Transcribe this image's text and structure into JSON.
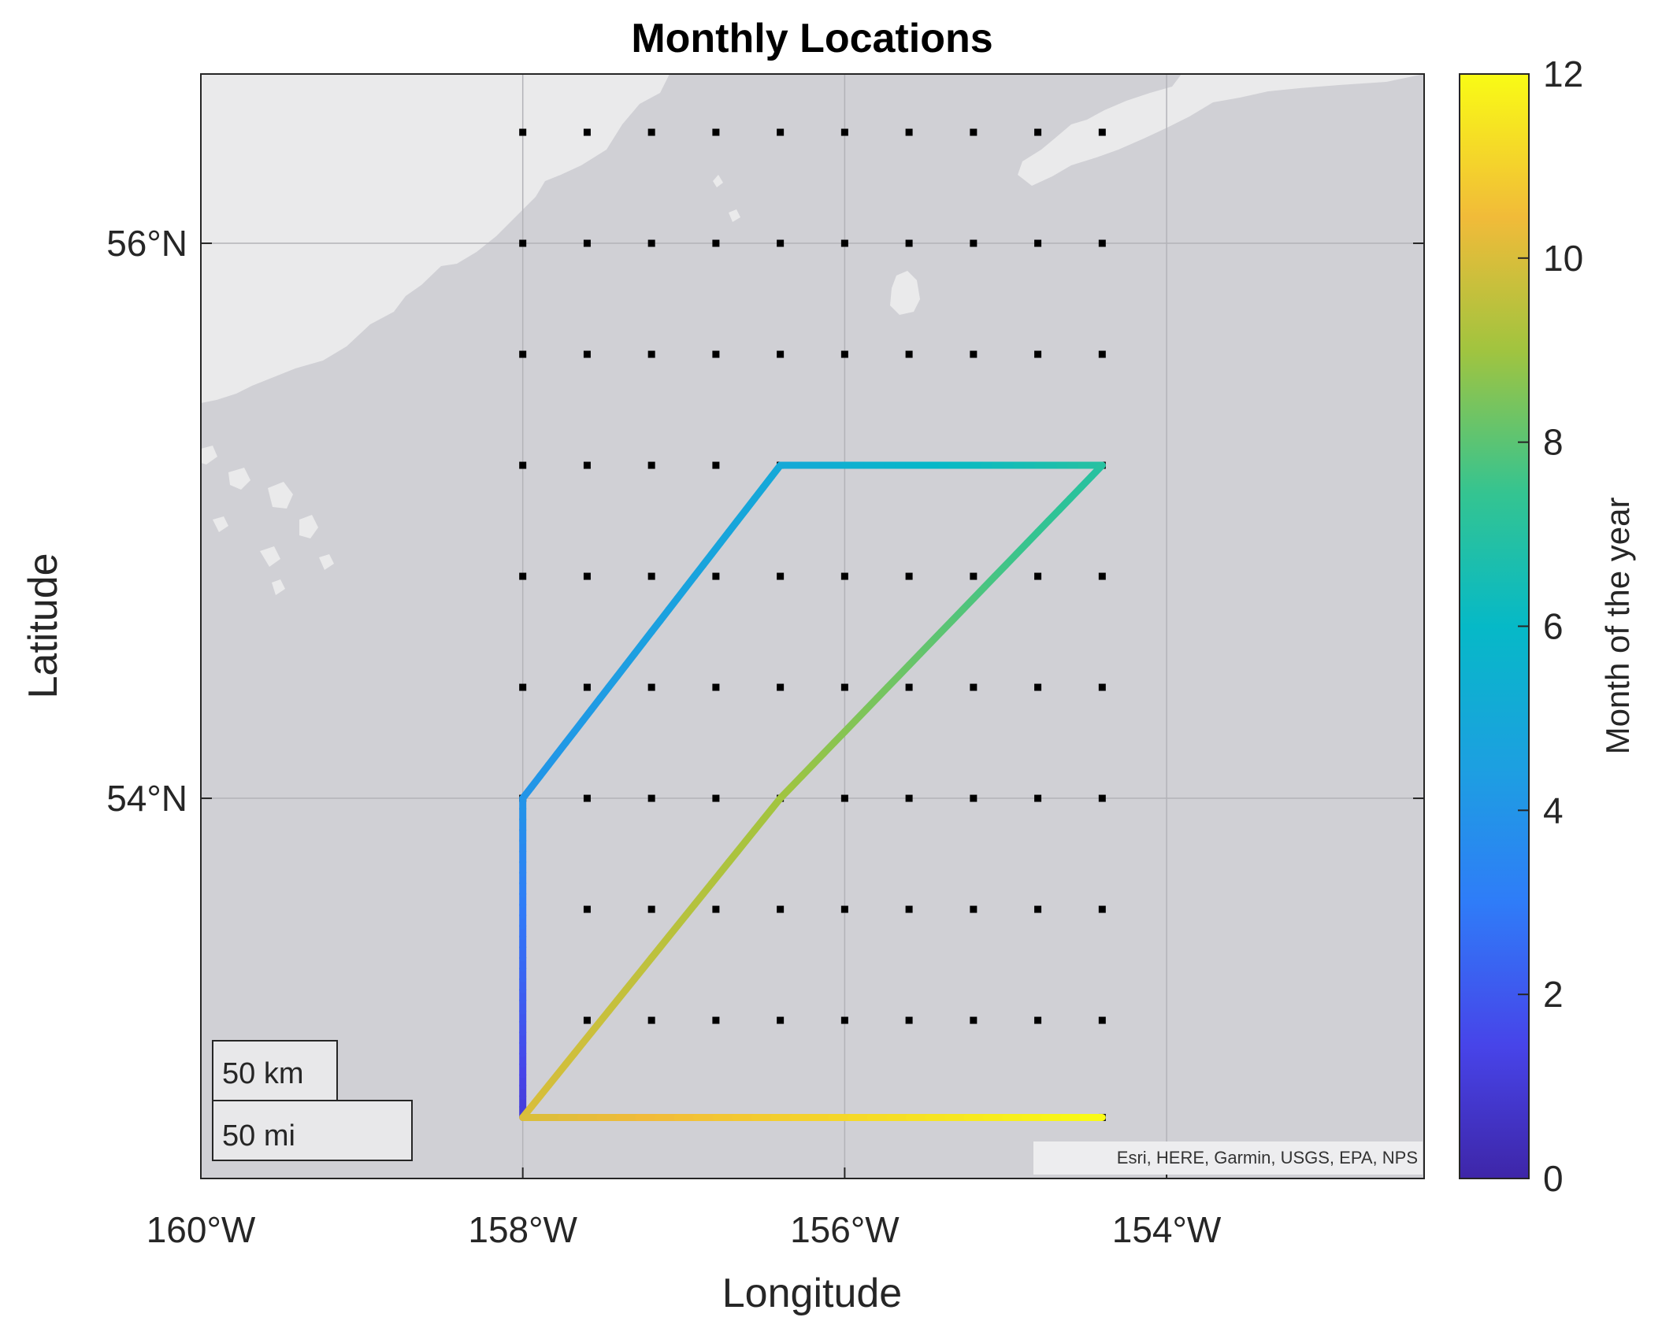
{
  "chart_data": {
    "type": "map",
    "title": "Monthly Locations",
    "xlabel": "Longitude",
    "ylabel": "Latitude",
    "lon_range": [
      -160,
      -152.4
    ],
    "lat_range": [
      52.63,
      56.61
    ],
    "lon_ticks": [
      {
        "value": -160,
        "label": "160°W"
      },
      {
        "value": -158,
        "label": "158°W"
      },
      {
        "value": -156,
        "label": "156°W"
      },
      {
        "value": -154,
        "label": "154°W"
      }
    ],
    "lat_ticks": [
      {
        "value": 56,
        "label": "56°N"
      },
      {
        "value": 54,
        "label": "54°N"
      }
    ],
    "grid": true,
    "grid_points": {
      "lons": [
        -158.0,
        -157.6,
        -157.2,
        -156.8,
        -156.4,
        -156.0,
        -155.6,
        -155.2,
        -154.8,
        -154.4
      ],
      "lats": [
        56.4,
        56.0,
        55.6,
        55.2,
        54.8,
        54.4,
        54.0,
        53.6,
        53.2,
        52.85
      ],
      "missing": [
        [
          -158.0,
          53.6
        ],
        [
          -158.0,
          53.2
        ],
        [
          -156.0,
          55.2
        ],
        [
          -155.6,
          55.2
        ],
        [
          -155.2,
          55.2
        ],
        [
          -154.8,
          55.2
        ],
        [
          -158.0,
          52.85
        ],
        [
          -157.6,
          52.85
        ],
        [
          -157.2,
          52.85
        ],
        [
          -156.8,
          52.85
        ],
        [
          -156.4,
          52.85
        ],
        [
          -156.0,
          52.85
        ],
        [
          -155.6,
          52.85
        ],
        [
          -155.2,
          52.85
        ],
        [
          -154.8,
          52.85
        ]
      ]
    },
    "track": [
      {
        "month": 1,
        "lon": -158.0,
        "lat": 52.85
      },
      {
        "month": 4,
        "lon": -158.0,
        "lat": 54.0
      },
      {
        "month": 5,
        "lon": -156.4,
        "lat": 55.2
      },
      {
        "month": 7,
        "lon": -154.4,
        "lat": 55.2
      },
      {
        "month": 9,
        "lon": -156.4,
        "lat": 54.0
      },
      {
        "month": 10,
        "lon": -158.0,
        "lat": 52.85
      },
      {
        "month": 12,
        "lon": -154.4,
        "lat": 52.85
      }
    ],
    "colorbar": {
      "label": "Month of the year",
      "range": [
        0,
        12
      ],
      "ticks": [
        0,
        2,
        4,
        6,
        8,
        10,
        12
      ],
      "colormap": "parula"
    },
    "scalebar": {
      "km_label": "50 km",
      "mi_label": "50 mi"
    },
    "attribution": "Esri, HERE, Garmin, USGS, EPA, NPS",
    "colors": {
      "sea": "#d0d0d5",
      "land": "#eaeaeb",
      "grid": "#b3b3b8",
      "dot": "#000000"
    }
  }
}
